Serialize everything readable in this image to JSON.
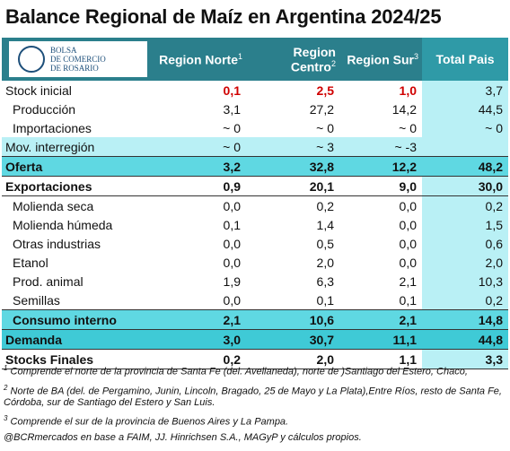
{
  "header": {
    "title": "Balance Regional de Maíz en Argentina 2024/25",
    "logo": [
      "BOLSA",
      "DE COMERCIO",
      "DE ROSARIO"
    ]
  },
  "table": {
    "columns": [
      {
        "label": "Region Norte",
        "note": "1"
      },
      {
        "label": "Region Centro",
        "note": "2"
      },
      {
        "label": "Region Sur",
        "note": "3"
      },
      {
        "label": "Total Pais"
      }
    ],
    "rows": [
      [
        "Stock inicial",
        "0,1",
        "2,5",
        "1,0",
        "3,7"
      ],
      [
        "Producción",
        "3,1",
        "27,2",
        "14,2",
        "44,5"
      ],
      [
        "Importaciones",
        "~ 0",
        "~ 0",
        "~ 0",
        "~ 0"
      ],
      [
        "Mov. interregión",
        "~ 0",
        "~ 3",
        "~ -3",
        null
      ],
      [
        "Oferta",
        "3,2",
        "32,8",
        "12,2",
        "48,2"
      ],
      [
        "Exportaciones",
        "0,9",
        "20,1",
        "9,0",
        "30,0"
      ],
      [
        "Molienda seca",
        "0,0",
        "0,2",
        "0,0",
        "0,2"
      ],
      [
        "Molienda húmeda",
        "0,1",
        "1,4",
        "0,0",
        "1,5"
      ],
      [
        "Otras industrias",
        "0,0",
        "0,5",
        "0,0",
        "0,6"
      ],
      [
        "Etanol",
        "0,0",
        "2,0",
        "0,0",
        "2,0"
      ],
      [
        "Prod. animal",
        "1,9",
        "6,3",
        "2,1",
        "10,3"
      ],
      [
        "Semillas",
        "0,0",
        "0,1",
        "0,1",
        "0,2"
      ],
      [
        "Consumo interno",
        "2,1",
        "10,6",
        "2,1",
        "14,8"
      ],
      [
        "Demanda",
        "3,0",
        "30,7",
        "11,1",
        "44,8"
      ],
      [
        "Stocks Finales",
        "0,2",
        "2,0",
        "1,1",
        "3,3"
      ]
    ]
  },
  "notes": [
    {
      "mark": "1",
      "text": "Comprende el norte de la provincia de Santa Fe (del. Avellaneda), norte de )Santiago del Estero, Chaco,"
    },
    {
      "mark": "2",
      "text": "Norte de BA (del. de Pergamino, Junin, Lincoln, Bragado, 25 de Mayo y La Plata),Entre Ríos, resto de Santa Fe, Córdoba, sur de Santiago del Estero y San Luis."
    },
    {
      "mark": "3",
      "text": "Comprende el sur de la provincia de Buenos Aires y La Pampa."
    }
  ],
  "source": "@BCRmercados en base a FAIM, JJ. Hinrichsen S.A., MAGyP y cálculos propios."
}
